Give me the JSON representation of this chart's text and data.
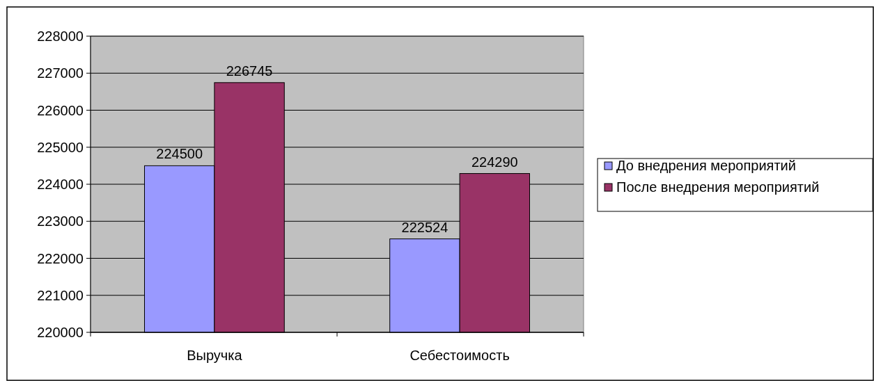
{
  "chart_data": {
    "type": "bar",
    "categories": [
      "Выручка",
      "Себестоимость"
    ],
    "series": [
      {
        "name": "До внедрения мероприятий",
        "color": "#9999ff",
        "values": [
          224500,
          222524
        ]
      },
      {
        "name": "После внедрения мероприятий",
        "color": "#993366",
        "values": [
          226745,
          224290
        ]
      }
    ],
    "ylim": [
      220000,
      228000
    ],
    "yticks": [
      220000,
      221000,
      222000,
      223000,
      224000,
      225000,
      226000,
      227000,
      228000
    ],
    "grid": "y",
    "data_labels": true,
    "legend": "right"
  }
}
